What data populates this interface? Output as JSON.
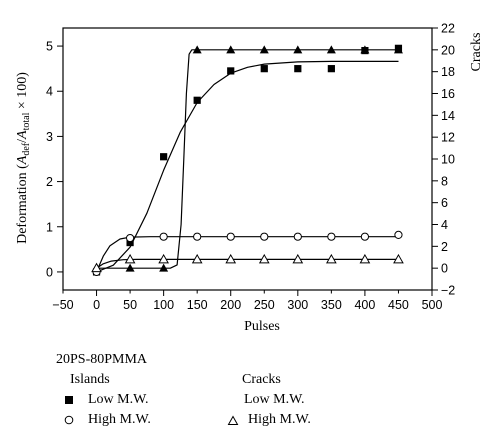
{
  "chart_data": {
    "type": "scatter",
    "xlabel": "Pulses",
    "ylabel_left_parts": {
      "pre": "Deformation (",
      "a1": "A",
      "sub1": "def",
      "mid": "/",
      "a2": "A",
      "sub2": "total",
      "post": " × 100)"
    },
    "ylabel_right": "Cracks",
    "xlim": [
      -50,
      500
    ],
    "x_ticks": [
      0,
      100,
      200,
      300,
      400,
      500
    ],
    "x_ticks_minor": [
      -50,
      50,
      150,
      250,
      350,
      450
    ],
    "ylim_left": [
      -0.4,
      5.4
    ],
    "y_ticks_left": [
      0,
      1,
      2,
      3,
      4,
      5
    ],
    "ylim_right": [
      -2,
      22
    ],
    "y_ticks_right": [
      -2,
      0,
      2,
      4,
      6,
      8,
      10,
      12,
      14,
      16,
      18,
      20,
      22
    ],
    "series": [
      {
        "axis": "left",
        "marker": "filled-square",
        "points": [
          [
            0,
            0.0
          ],
          [
            50,
            0.65
          ],
          [
            100,
            2.55
          ],
          [
            150,
            3.8
          ],
          [
            200,
            4.45
          ],
          [
            250,
            4.5
          ],
          [
            300,
            4.5
          ],
          [
            350,
            4.5
          ],
          [
            400,
            4.9
          ],
          [
            450,
            4.95
          ]
        ],
        "fit": [
          [
            0,
            0.0
          ],
          [
            25,
            0.15
          ],
          [
            50,
            0.55
          ],
          [
            75,
            1.3
          ],
          [
            100,
            2.25
          ],
          [
            125,
            3.1
          ],
          [
            150,
            3.75
          ],
          [
            175,
            4.15
          ],
          [
            200,
            4.4
          ],
          [
            225,
            4.53
          ],
          [
            250,
            4.6
          ],
          [
            300,
            4.65
          ],
          [
            350,
            4.66
          ],
          [
            450,
            4.66
          ]
        ]
      },
      {
        "axis": "left",
        "marker": "open-circle",
        "points": [
          [
            0,
            0.0
          ],
          [
            50,
            0.75
          ],
          [
            100,
            0.78
          ],
          [
            150,
            0.78
          ],
          [
            200,
            0.78
          ],
          [
            250,
            0.78
          ],
          [
            300,
            0.78
          ],
          [
            350,
            0.78
          ],
          [
            400,
            0.78
          ],
          [
            450,
            0.82
          ]
        ],
        "fit": [
          [
            0,
            0.0
          ],
          [
            10,
            0.35
          ],
          [
            20,
            0.58
          ],
          [
            35,
            0.73
          ],
          [
            50,
            0.77
          ],
          [
            80,
            0.78
          ],
          [
            450,
            0.78
          ]
        ]
      },
      {
        "axis": "right",
        "marker": "filled-triangle",
        "points": [
          [
            0,
            0.0
          ],
          [
            50,
            0.0
          ],
          [
            100,
            0.0
          ],
          [
            150,
            20.0
          ],
          [
            200,
            20.0
          ],
          [
            250,
            20.0
          ],
          [
            300,
            20.0
          ],
          [
            350,
            20.0
          ],
          [
            400,
            20.0
          ],
          [
            450,
            20.0
          ]
        ],
        "fit": [
          [
            0,
            0.0
          ],
          [
            110,
            0.0
          ],
          [
            120,
            0.3
          ],
          [
            126,
            4.0
          ],
          [
            130,
            10.0
          ],
          [
            134,
            16.0
          ],
          [
            138,
            19.6
          ],
          [
            142,
            20.0
          ],
          [
            450,
            20.0
          ]
        ]
      },
      {
        "axis": "right",
        "marker": "open-triangle",
        "points": [
          [
            0,
            0.0
          ],
          [
            50,
            0.8
          ],
          [
            100,
            0.8
          ],
          [
            150,
            0.8
          ],
          [
            200,
            0.8
          ],
          [
            250,
            0.8
          ],
          [
            300,
            0.8
          ],
          [
            350,
            0.8
          ],
          [
            400,
            0.8
          ],
          [
            450,
            0.8
          ]
        ],
        "fit": [
          [
            0,
            0.0
          ],
          [
            10,
            0.4
          ],
          [
            22,
            0.65
          ],
          [
            40,
            0.78
          ],
          [
            60,
            0.8
          ],
          [
            450,
            0.8
          ]
        ]
      }
    ],
    "legend": {
      "heading": "20PS-80PMMA",
      "group1": "Islands",
      "group1_items": [
        "Low M.W.",
        "High M.W."
      ],
      "group2": "Cracks",
      "group2_items": [
        "Low M.W.",
        "High M.W."
      ]
    }
  }
}
